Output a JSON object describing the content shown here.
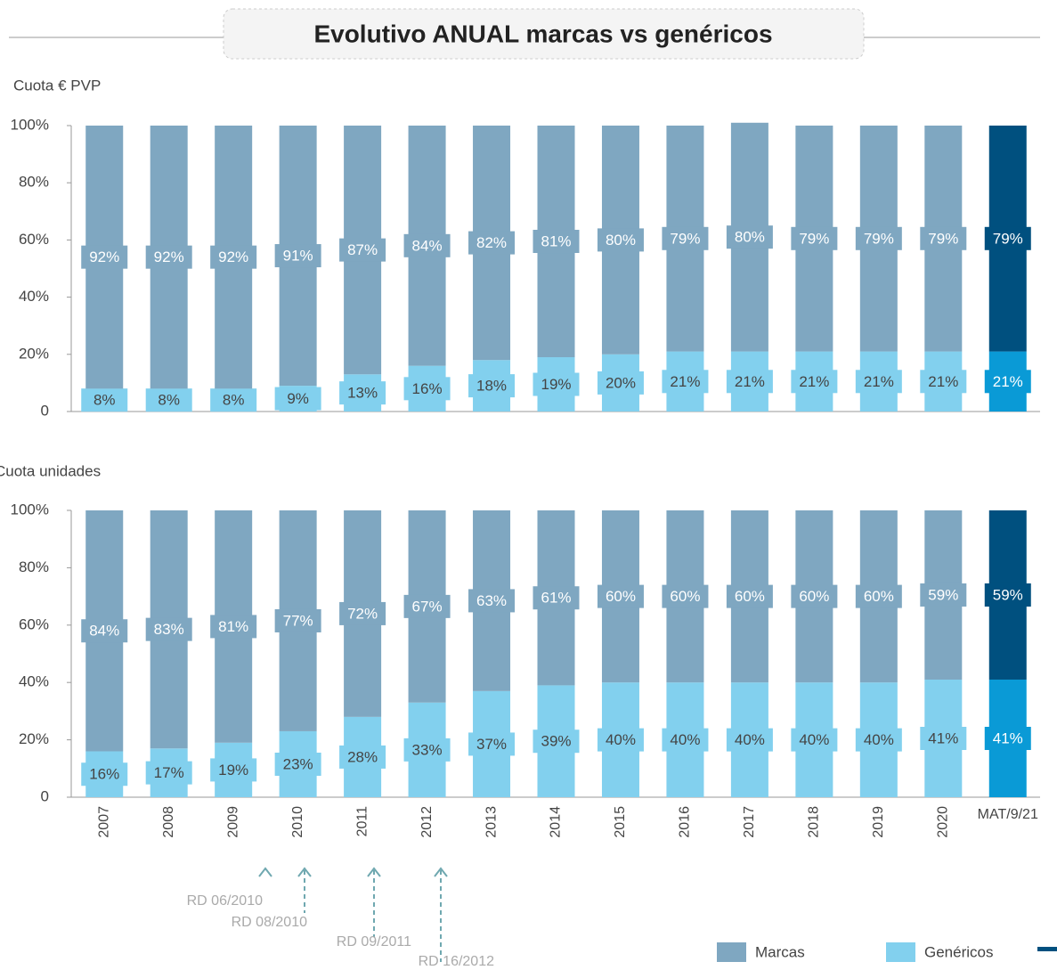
{
  "title": "Evolutivo ANUAL marcas vs genéricos",
  "chart_data": [
    {
      "type": "stacked_bar",
      "subtitle": "Cuota € PVP",
      "ylim": [
        0,
        100
      ],
      "yticks": [
        0,
        {
          "value": 20,
          "label": "20%"
        },
        {
          "value": 40,
          "label": "40%"
        },
        {
          "value": 60,
          "label": "60%"
        },
        {
          "value": 80,
          "label": "80%"
        },
        {
          "value": 100,
          "label": "100%"
        }
      ],
      "series": [
        {
          "name": "Marcas",
          "color": "#7fa7c1",
          "last_color": "#00507f",
          "values": [
            92,
            92,
            92,
            91,
            87,
            84,
            82,
            81,
            80,
            79,
            80,
            79,
            79,
            79,
            79
          ],
          "value_labels": [
            "92%",
            "92%",
            "92%",
            "91%",
            "87%",
            "84%",
            "82%",
            "81%",
            "80%",
            "79%",
            "80%",
            "79%",
            "79%",
            "79%",
            "79%"
          ]
        },
        {
          "name": "Genéricos",
          "color": "#82d0ee",
          "last_color": "#0a9ad6",
          "values": [
            8,
            8,
            8,
            9,
            13,
            16,
            18,
            19,
            20,
            21,
            21,
            21,
            21,
            21,
            21
          ],
          "value_labels": [
            "8%",
            "8%",
            "8%",
            "9%",
            "13%",
            "16%",
            "18%",
            "19%",
            "20%",
            "21%",
            "21%",
            "21%",
            "21%",
            "21%",
            "21%"
          ]
        }
      ]
    },
    {
      "type": "stacked_bar",
      "subtitle": "Cuota unidades",
      "categories": [
        "2007",
        "2008",
        "2009",
        "2010",
        "2011",
        "2012",
        "2013",
        "2014",
        "2015",
        "2016",
        "2017",
        "2018",
        "2019",
        "2020",
        "MAT/9/21"
      ],
      "ylim": [
        0,
        100
      ],
      "yticks": [
        0,
        {
          "value": 20,
          "label": "20%"
        },
        {
          "value": 40,
          "label": "40%"
        },
        {
          "value": 60,
          "label": "60%"
        },
        {
          "value": 80,
          "label": "80%"
        },
        {
          "value": 100,
          "label": "100%"
        }
      ],
      "series": [
        {
          "name": "Marcas",
          "color": "#7fa7c1",
          "last_color": "#00507f",
          "values": [
            84,
            83,
            81,
            77,
            72,
            67,
            63,
            61,
            60,
            60,
            60,
            60,
            60,
            59,
            59
          ],
          "value_labels": [
            "84%",
            "83%",
            "81%",
            "77%",
            "72%",
            "67%",
            "63%",
            "61%",
            "60%",
            "60%",
            "60%",
            "60%",
            "60%",
            "59%",
            "59%"
          ]
        },
        {
          "name": "Genéricos",
          "color": "#82d0ee",
          "last_color": "#0a9ad6",
          "values": [
            16,
            17,
            19,
            23,
            28,
            33,
            37,
            39,
            40,
            40,
            40,
            40,
            40,
            41,
            41
          ],
          "value_labels": [
            "16%",
            "17%",
            "19%",
            "23%",
            "28%",
            "33%",
            "37%",
            "39%",
            "40%",
            "40%",
            "40%",
            "40%",
            "40%",
            "41%",
            "41%"
          ]
        }
      ]
    }
  ],
  "annotations": [
    "RD 06/2010",
    "RD 08/2010",
    "RD 09/2011",
    "RD 16/2012"
  ]
}
